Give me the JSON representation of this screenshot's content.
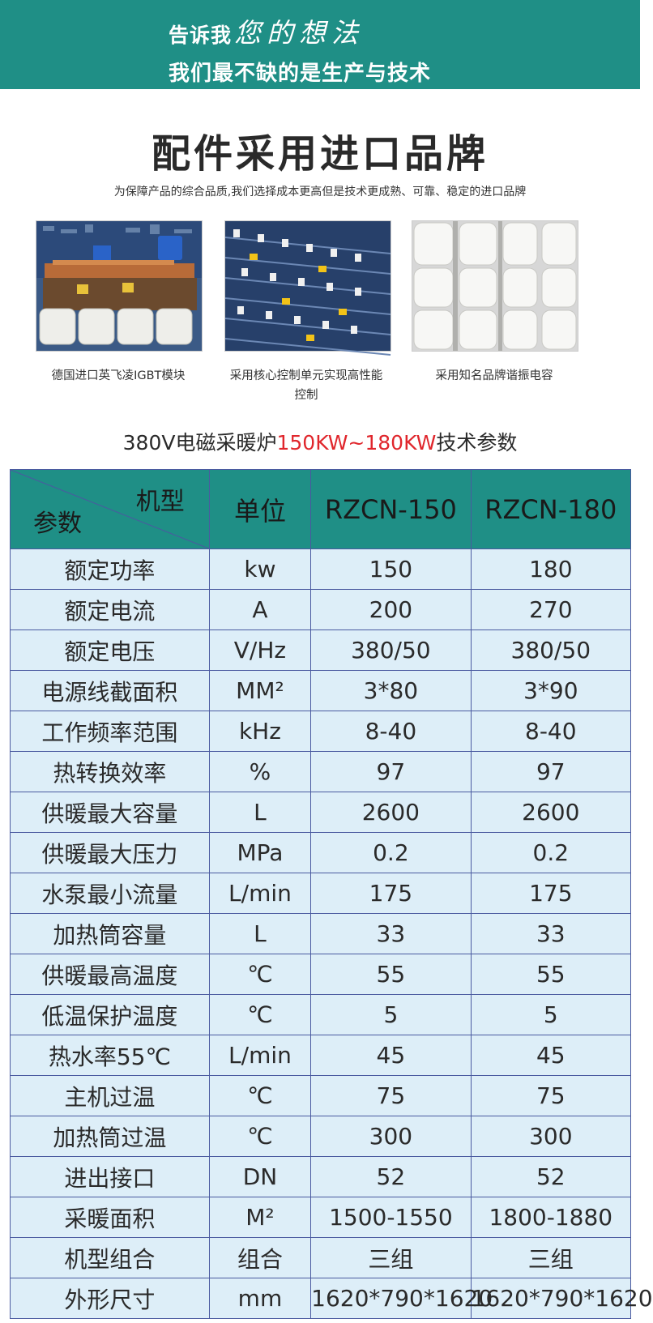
{
  "banner": {
    "line1_plain": "告诉我",
    "line1_script": "您的想法",
    "line2": "我们最不缺的是生产与技术"
  },
  "heading": {
    "title": "配件采用进口品牌",
    "subtitle": "为保障产品的综合品质,我们选择成本更高但是技术更成熟、可靠、稳定的进口品牌"
  },
  "features": [
    {
      "caption": "德国进口英飞凌IGBT模块",
      "image": "igbt-board-photo"
    },
    {
      "caption": "采用核心控制单元实现高性能控制",
      "image": "control-unit-photo"
    },
    {
      "caption": "采用知名品牌谐振电容",
      "image": "resonant-capacitor-photo"
    }
  ],
  "spec": {
    "title_pre": "380V电磁采暖炉",
    "title_highlight": "150KW~180KW",
    "title_post": "技术参数",
    "header": {
      "corner_top": "机型",
      "corner_bottom": "参数",
      "unit": "单位",
      "model_a": "RZCN-150",
      "model_b": "RZCN-180"
    },
    "rows": [
      {
        "param": "额定功率",
        "unit": "kw",
        "a": "150",
        "b": "180"
      },
      {
        "param": "额定电流",
        "unit": "A",
        "a": "200",
        "b": "270"
      },
      {
        "param": "额定电压",
        "unit": "V/Hz",
        "a": "380/50",
        "b": "380/50"
      },
      {
        "param": "电源线截面积",
        "unit": "MM²",
        "a": "3*80",
        "b": "3*90"
      },
      {
        "param": "工作频率范围",
        "unit": "kHz",
        "a": "8-40",
        "b": "8-40"
      },
      {
        "param": "热转换效率",
        "unit": "%",
        "a": "97",
        "b": "97"
      },
      {
        "param": "供暖最大容量",
        "unit": "L",
        "a": "2600",
        "b": "2600"
      },
      {
        "param": "供暖最大压力",
        "unit": "MPa",
        "a": "0.2",
        "b": "0.2"
      },
      {
        "param": "水泵最小流量",
        "unit": "L/min",
        "a": "175",
        "b": "175"
      },
      {
        "param": "加热筒容量",
        "unit": "L",
        "a": "33",
        "b": "33"
      },
      {
        "param": "供暖最高温度",
        "unit": "℃",
        "a": "55",
        "b": "55"
      },
      {
        "param": "低温保护温度",
        "unit": "℃",
        "a": "5",
        "b": "5"
      },
      {
        "param": "热水率55℃",
        "unit": "L/min",
        "a": "45",
        "b": "45"
      },
      {
        "param": "主机过温",
        "unit": "℃",
        "a": "75",
        "b": "75"
      },
      {
        "param": "加热筒过温",
        "unit": "℃",
        "a": "300",
        "b": "300"
      },
      {
        "param": "进出接口",
        "unit": "DN",
        "a": "52",
        "b": "52"
      },
      {
        "param": "采暖面积",
        "unit": "M²",
        "a": "1500-1550",
        "b": "1800-1880"
      },
      {
        "param": "机型组合",
        "unit": "组合",
        "a": "三组",
        "b": "三组"
      },
      {
        "param": "外形尺寸",
        "unit": "mm",
        "a": "1620*790*1620",
        "b": "1620*790*1620"
      }
    ]
  },
  "colors": {
    "teal": "#1f8f86",
    "highlight_red": "#e0262c",
    "table_fill": "#ddeef8",
    "table_border": "#4a5aa0"
  }
}
